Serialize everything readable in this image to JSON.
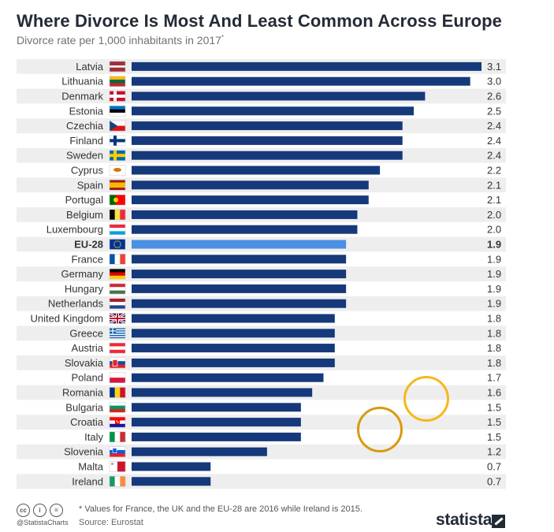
{
  "title": "Where Divorce Is Most And Least Common Across Europe",
  "subtitle": "Divorce rate per 1,000 inhabitants in 2017",
  "subtitle_mark": "*",
  "footnote": "* Values for France, the UK and the EU-28 are 2016 while Ireland is 2015.",
  "source": "Source: Eurostat",
  "handle": "@StatistaCharts",
  "brand": "statista",
  "colors": {
    "bar": "#15397a",
    "highlight": "#4a90e2",
    "stripe": "#eeeeee",
    "circle1": "#f5b81c",
    "circle2": "#d89a0e"
  },
  "chart_data": {
    "type": "bar",
    "orientation": "horizontal",
    "xlim": [
      0,
      3.1
    ],
    "highlight": "EU-28",
    "categories": [
      "Latvia",
      "Lithuania",
      "Denmark",
      "Estonia",
      "Czechia",
      "Finland",
      "Sweden",
      "Cyprus",
      "Spain",
      "Portugal",
      "Belgium",
      "Luxembourg",
      "EU-28",
      "France",
      "Germany",
      "Hungary",
      "Netherlands",
      "United Kingdom",
      "Greece",
      "Austria",
      "Slovakia",
      "Poland",
      "Romania",
      "Bulgaria",
      "Croatia",
      "Italy",
      "Slovenia",
      "Malta",
      "Ireland"
    ],
    "values": [
      3.1,
      3.0,
      2.6,
      2.5,
      2.4,
      2.4,
      2.4,
      2.2,
      2.1,
      2.1,
      2.0,
      2.0,
      1.9,
      1.9,
      1.9,
      1.9,
      1.9,
      1.8,
      1.8,
      1.8,
      1.8,
      1.7,
      1.6,
      1.5,
      1.5,
      1.5,
      1.2,
      0.7,
      0.7
    ],
    "labels": [
      "3.1",
      "3.0",
      "2.6",
      "2.5",
      "2.4",
      "2.4",
      "2.4",
      "2.2",
      "2.1",
      "2.1",
      "2.0",
      "2.0",
      "1.9",
      "1.9",
      "1.9",
      "1.9",
      "1.9",
      "1.8",
      "1.8",
      "1.8",
      "1.8",
      "1.7",
      "1.6",
      "1.5",
      "1.5",
      "1.5",
      "1.2",
      "0.7",
      "0.7"
    ],
    "flags": [
      "latvia-flag-icon",
      "lithuania-flag-icon",
      "denmark-flag-icon",
      "estonia-flag-icon",
      "czechia-flag-icon",
      "finland-flag-icon",
      "sweden-flag-icon",
      "cyprus-flag-icon",
      "spain-flag-icon",
      "portugal-flag-icon",
      "belgium-flag-icon",
      "luxembourg-flag-icon",
      "eu-flag-icon",
      "france-flag-icon",
      "germany-flag-icon",
      "hungary-flag-icon",
      "netherlands-flag-icon",
      "uk-flag-icon",
      "greece-flag-icon",
      "austria-flag-icon",
      "slovakia-flag-icon",
      "poland-flag-icon",
      "romania-flag-icon",
      "bulgaria-flag-icon",
      "croatia-flag-icon",
      "italy-flag-icon",
      "slovenia-flag-icon",
      "malta-flag-icon",
      "ireland-flag-icon"
    ],
    "grid": false
  }
}
